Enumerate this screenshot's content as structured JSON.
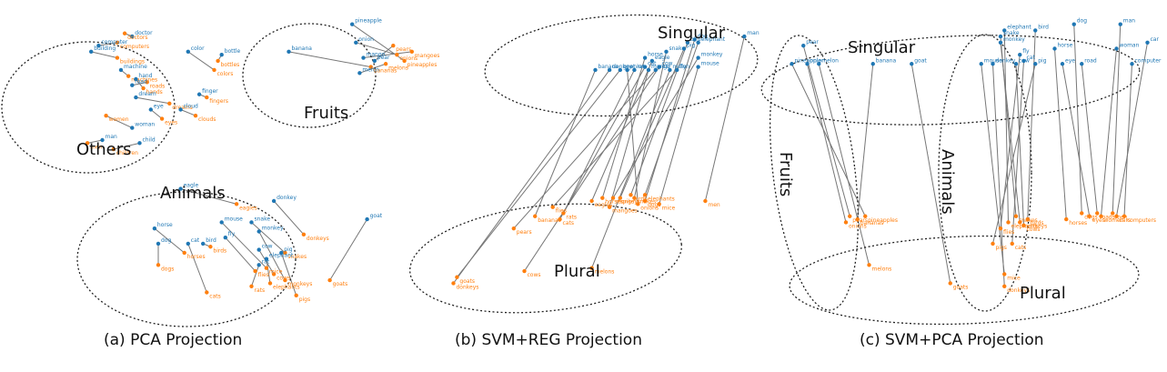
{
  "colors": {
    "singular": "#1f77b4",
    "plural": "#ff7f0e",
    "link": "#777777",
    "ellipse": "#222222"
  },
  "chart_data": [
    {
      "type": "scatter",
      "caption": "(a) PCA Projection",
      "group_labels": [
        "Others",
        "Fruits",
        "Animals"
      ],
      "pairs": [
        {
          "s": "pineapple",
          "sx": 9.2,
          "sy": 9.8,
          "p": "pineapples",
          "px": 10.6,
          "py": 8.6
        },
        {
          "s": "onion",
          "sx": 9.3,
          "sy": 9.2,
          "p": "onions",
          "px": 10.4,
          "py": 8.8
        },
        {
          "s": "banana",
          "sx": 7.5,
          "sy": 8.9,
          "p": "bananas",
          "px": 9.7,
          "py": 8.4
        },
        {
          "s": "mango",
          "sx": 9.5,
          "sy": 8.7,
          "p": "mangoes",
          "px": 10.8,
          "py": 8.9
        },
        {
          "s": "melon",
          "sx": 9.4,
          "sy": 8.2,
          "p": "melons",
          "px": 10.1,
          "py": 8.5
        },
        {
          "s": "pear",
          "sx": 9.8,
          "sy": 8.6,
          "p": "pears",
          "px": 10.3,
          "py": 9.1
        },
        {
          "s": "doctor",
          "sx": 3.3,
          "sy": 9.4,
          "p": "doctors",
          "px": 3.1,
          "py": 9.5
        },
        {
          "s": "computer",
          "sx": 2.4,
          "sy": 9.1,
          "p": "computers",
          "px": 2.9,
          "py": 9.2
        },
        {
          "s": "building",
          "sx": 2.2,
          "sy": 8.9,
          "p": "buildings",
          "px": 2.9,
          "py": 8.7
        },
        {
          "s": "machine",
          "sx": 3.0,
          "sy": 8.3,
          "p": "machines",
          "px": 3.2,
          "py": 8.1
        },
        {
          "s": "hand",
          "sx": 3.4,
          "sy": 8.0,
          "p": "hands",
          "px": 3.6,
          "py": 7.7
        },
        {
          "s": "road",
          "sx": 3.3,
          "sy": 7.8,
          "p": "roads",
          "px": 3.7,
          "py": 7.9
        },
        {
          "s": "dream",
          "sx": 3.4,
          "sy": 7.4,
          "p": "dreams",
          "px": 4.3,
          "py": 7.2
        },
        {
          "s": "color",
          "sx": 4.8,
          "sy": 8.9,
          "p": "colors",
          "px": 5.5,
          "py": 8.3
        },
        {
          "s": "bottle",
          "sx": 5.7,
          "sy": 8.8,
          "p": "bottles",
          "px": 5.6,
          "py": 8.6
        },
        {
          "s": "finger",
          "sx": 5.1,
          "sy": 7.5,
          "p": "fingers",
          "px": 5.3,
          "py": 7.4
        },
        {
          "s": "eye",
          "sx": 3.8,
          "sy": 7.0,
          "p": "eyes",
          "px": 4.1,
          "py": 6.7
        },
        {
          "s": "cloud",
          "sx": 4.6,
          "sy": 7.0,
          "p": "clouds",
          "px": 5.0,
          "py": 6.8
        },
        {
          "s": "woman",
          "sx": 3.3,
          "sy": 6.4,
          "p": "women",
          "px": 2.6,
          "py": 6.8
        },
        {
          "s": "man",
          "sx": 2.5,
          "sy": 6.0,
          "p": "men",
          "px": 2.1,
          "py": 5.9
        },
        {
          "s": "child",
          "sx": 3.5,
          "sy": 5.9,
          "p": "children",
          "px": 2.8,
          "py": 5.7
        },
        {
          "s": "eagle",
          "sx": 4.6,
          "sy": 4.4,
          "p": "eagles",
          "px": 6.1,
          "py": 3.9
        },
        {
          "s": "donkey",
          "sx": 7.1,
          "sy": 4.0,
          "p": "donkeys",
          "px": 7.9,
          "py": 2.9
        },
        {
          "s": "goat",
          "sx": 9.6,
          "sy": 3.4,
          "p": "goats",
          "px": 8.6,
          "py": 1.4
        },
        {
          "s": "horse",
          "sx": 3.9,
          "sy": 3.1,
          "p": "horses",
          "px": 4.7,
          "py": 2.3
        },
        {
          "s": "mouse",
          "sx": 5.7,
          "sy": 3.3,
          "p": "mice",
          "px": 6.9,
          "py": 1.8
        },
        {
          "s": "snake",
          "sx": 6.5,
          "sy": 3.3,
          "p": "snakes",
          "px": 7.4,
          "py": 2.3
        },
        {
          "s": "monkey",
          "sx": 6.7,
          "sy": 3.0,
          "p": "monkeys",
          "px": 7.4,
          "py": 1.4
        },
        {
          "s": "dog",
          "sx": 4.0,
          "sy": 2.6,
          "p": "dogs",
          "px": 4.0,
          "py": 1.9
        },
        {
          "s": "cat",
          "sx": 4.8,
          "sy": 2.6,
          "p": "cats",
          "px": 5.3,
          "py": 1.0
        },
        {
          "s": "bird",
          "sx": 5.2,
          "sy": 2.6,
          "p": "birds",
          "px": 5.4,
          "py": 2.5
        },
        {
          "s": "fly",
          "sx": 5.8,
          "sy": 2.8,
          "p": "flies",
          "px": 6.6,
          "py": 1.7
        },
        {
          "s": "cow",
          "sx": 6.7,
          "sy": 2.4,
          "p": "cows",
          "px": 7.1,
          "py": 1.6
        },
        {
          "s": "pig",
          "sx": 7.3,
          "sy": 2.3,
          "p": "pigs",
          "px": 7.7,
          "py": 0.9
        },
        {
          "s": "elephant",
          "sx": 6.9,
          "sy": 2.1,
          "p": "elephants",
          "px": 7.0,
          "py": 1.3
        },
        {
          "s": "rat",
          "sx": 6.7,
          "sy": 1.9,
          "p": "rats",
          "px": 6.5,
          "py": 1.2
        }
      ]
    },
    {
      "type": "scatter",
      "caption": "(b) SVM+REG Projection",
      "group_labels": [
        "Singular",
        "Plural"
      ],
      "pairs": [
        {
          "s": "man",
          "sx": 9.7,
          "sy": 9.4,
          "p": "men",
          "px": 8.6,
          "py": 4.0
        },
        {
          "s": "dog",
          "sx": 8.3,
          "sy": 9.3,
          "p": "dogs",
          "px": 6.9,
          "py": 4.0
        },
        {
          "s": "elephant",
          "sx": 8.4,
          "sy": 9.2,
          "p": "elephants",
          "px": 6.9,
          "py": 4.2
        },
        {
          "s": "bird",
          "sx": 8.1,
          "sy": 9.2,
          "p": "birds",
          "px": 6.5,
          "py": 4.2
        },
        {
          "s": "pig",
          "sx": 8.0,
          "sy": 9.0,
          "p": "pigs",
          "px": 6.2,
          "py": 4.1
        },
        {
          "s": "snake",
          "sx": 7.5,
          "sy": 8.9,
          "p": "snakes",
          "px": 6.6,
          "py": 4.1
        },
        {
          "s": "monkey",
          "sx": 8.4,
          "sy": 8.7,
          "p": "monkeys",
          "px": 6.0,
          "py": 4.1
        },
        {
          "s": "horse",
          "sx": 6.9,
          "sy": 8.7,
          "p": "horses",
          "px": 5.7,
          "py": 4.1
        },
        {
          "s": "eagle",
          "sx": 7.1,
          "sy": 8.6,
          "p": "eagles",
          "px": 5.4,
          "py": 4.0
        },
        {
          "s": "mouse",
          "sx": 8.4,
          "sy": 8.4,
          "p": "mice",
          "px": 7.3,
          "py": 3.9
        },
        {
          "s": "cow",
          "sx": 7.3,
          "sy": 8.4,
          "p": "cows",
          "px": 3.5,
          "py": 1.7
        },
        {
          "s": "cat",
          "sx": 6.9,
          "sy": 8.4,
          "p": "cats",
          "px": 4.5,
          "py": 3.4
        },
        {
          "s": "rat",
          "sx": 6.6,
          "sy": 8.3,
          "p": "rats",
          "px": 4.6,
          "py": 3.6
        },
        {
          "s": "banana",
          "sx": 5.5,
          "sy": 8.3,
          "p": "bananas",
          "px": 3.8,
          "py": 3.5
        },
        {
          "s": "mango",
          "sx": 7.0,
          "sy": 8.3,
          "p": "mangoes",
          "px": 5.9,
          "py": 3.8
        },
        {
          "s": "melon",
          "sx": 7.6,
          "sy": 8.3,
          "p": "melons",
          "px": 5.4,
          "py": 1.8
        },
        {
          "s": "goat",
          "sx": 6.2,
          "sy": 8.3,
          "p": "goats",
          "px": 1.6,
          "py": 1.5
        },
        {
          "s": "donkey",
          "sx": 5.9,
          "sy": 8.3,
          "p": "donkeys",
          "px": 1.5,
          "py": 1.3
        },
        {
          "s": "fly",
          "sx": 7.8,
          "sy": 8.3,
          "p": "flies",
          "px": 4.3,
          "py": 3.8
        },
        {
          "s": "onion",
          "sx": 6.4,
          "sy": 8.3,
          "p": "onions",
          "px": 6.7,
          "py": 3.9
        },
        {
          "s": "pear",
          "sx": 7.2,
          "sy": 8.3,
          "p": "pears",
          "px": 3.2,
          "py": 3.1
        }
      ]
    },
    {
      "type": "scatter",
      "caption": "(c) SVM+PCA Projection",
      "group_labels": [
        "Singular",
        "Fruits",
        "Animals",
        "Plural"
      ],
      "pairs": [
        {
          "s": "pear",
          "sx": 0.9,
          "sy": 9.1,
          "p": "pears",
          "px": 2.1,
          "py": 3.5
        },
        {
          "s": "pineapple",
          "sx": 0.6,
          "sy": 8.5,
          "p": "pineapples",
          "px": 2.5,
          "py": 3.5
        },
        {
          "s": "onion",
          "sx": 1.0,
          "sy": 8.5,
          "p": "onions",
          "px": 2.0,
          "py": 3.3
        },
        {
          "s": "melon",
          "sx": 1.3,
          "sy": 8.5,
          "p": "melons",
          "px": 2.6,
          "py": 1.9
        },
        {
          "s": "banana",
          "sx": 2.7,
          "sy": 8.5,
          "p": "bananas",
          "px": 2.3,
          "py": 3.4
        },
        {
          "s": "goat",
          "sx": 3.7,
          "sy": 8.5,
          "p": "goats",
          "px": 4.7,
          "py": 1.3
        },
        {
          "s": "elephant",
          "sx": 6.1,
          "sy": 9.6,
          "p": "elephants",
          "px": 6.2,
          "py": 3.3
        },
        {
          "s": "snake",
          "sx": 6.0,
          "sy": 9.4,
          "p": "snakes",
          "px": 6.4,
          "py": 3.5
        },
        {
          "s": "monkey",
          "sx": 6.0,
          "sy": 9.2,
          "p": "monkeys",
          "px": 6.5,
          "py": 3.3
        },
        {
          "s": "bird",
          "sx": 6.9,
          "sy": 9.6,
          "p": "birds",
          "px": 6.7,
          "py": 3.4
        },
        {
          "s": "fly",
          "sx": 6.5,
          "sy": 8.8,
          "p": "flies",
          "px": 6.0,
          "py": 3.1
        },
        {
          "s": "cat",
          "sx": 6.6,
          "sy": 8.6,
          "p": "cats",
          "px": 6.3,
          "py": 2.6
        },
        {
          "s": "cow",
          "sx": 6.4,
          "sy": 8.5,
          "p": "cows",
          "px": 6.6,
          "py": 3.2
        },
        {
          "s": "pig",
          "sx": 6.9,
          "sy": 8.5,
          "p": "pigs",
          "px": 5.8,
          "py": 2.6
        },
        {
          "s": "mouse",
          "sx": 5.5,
          "sy": 8.5,
          "p": "mice",
          "px": 6.1,
          "py": 1.6
        },
        {
          "s": "donkey",
          "sx": 5.8,
          "sy": 8.5,
          "p": "donkeys",
          "px": 6.1,
          "py": 1.2
        },
        {
          "s": "horse",
          "sx": 7.4,
          "sy": 9.0,
          "p": "horses",
          "px": 7.7,
          "py": 3.4
        },
        {
          "s": "dog",
          "sx": 7.9,
          "sy": 9.8,
          "p": "dogs",
          "px": 8.1,
          "py": 3.6
        },
        {
          "s": "man",
          "sx": 9.1,
          "sy": 9.8,
          "p": "men",
          "px": 8.9,
          "py": 3.6
        },
        {
          "s": "woman",
          "sx": 9.0,
          "sy": 9.0,
          "p": "women",
          "px": 8.6,
          "py": 3.5
        },
        {
          "s": "car",
          "sx": 9.8,
          "sy": 9.2,
          "p": "cars",
          "px": 9.0,
          "py": 3.5
        },
        {
          "s": "eye",
          "sx": 7.6,
          "sy": 8.5,
          "p": "eyes",
          "px": 8.3,
          "py": 3.5
        },
        {
          "s": "road",
          "sx": 8.1,
          "sy": 8.5,
          "p": "roads",
          "px": 8.5,
          "py": 3.6
        },
        {
          "s": "computer",
          "sx": 9.4,
          "sy": 8.5,
          "p": "computers",
          "px": 9.2,
          "py": 3.5
        }
      ]
    }
  ]
}
